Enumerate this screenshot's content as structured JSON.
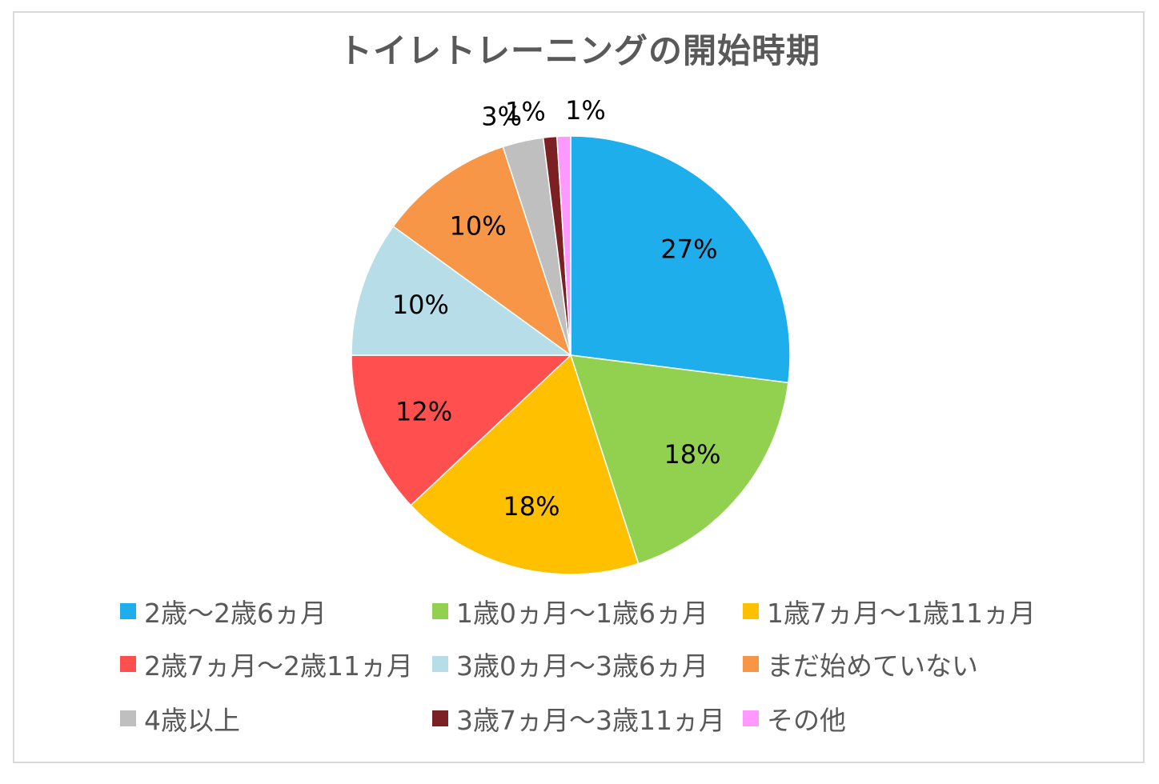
{
  "chart_data": {
    "type": "pie",
    "title": "トイレトレーニングの開始時期",
    "legend_position": "bottom",
    "slices": [
      {
        "label": "2歳～2歳6ヵ月",
        "value": 27,
        "data_label": "27%",
        "color": "#1DAEEB"
      },
      {
        "label": "1歳0ヵ月～1歳6ヵ月",
        "value": 18,
        "data_label": "18%",
        "color": "#92D050"
      },
      {
        "label": "1歳7ヵ月～1歳11ヵ月",
        "value": 18,
        "data_label": "18%",
        "color": "#FFC000"
      },
      {
        "label": "2歳7ヵ月～2歳11ヵ月",
        "value": 12,
        "data_label": "12%",
        "color": "#FF4F4F"
      },
      {
        "label": "3歳0ヵ月～3歳6ヵ月",
        "value": 10,
        "data_label": "10%",
        "color": "#B7DEE8"
      },
      {
        "label": "まだ始めていない",
        "value": 10,
        "data_label": "10%",
        "color": "#F79646"
      },
      {
        "label": "4歳以上",
        "value": 3,
        "data_label": "3%",
        "color": "#BFBFBF"
      },
      {
        "label": "3歳7ヵ月～3歳11ヵ月",
        "value": 1,
        "data_label": "1%",
        "color": "#7B2124"
      },
      {
        "label": "その他",
        "value": 1,
        "data_label": "1%",
        "color": "#FF99FF"
      }
    ]
  }
}
